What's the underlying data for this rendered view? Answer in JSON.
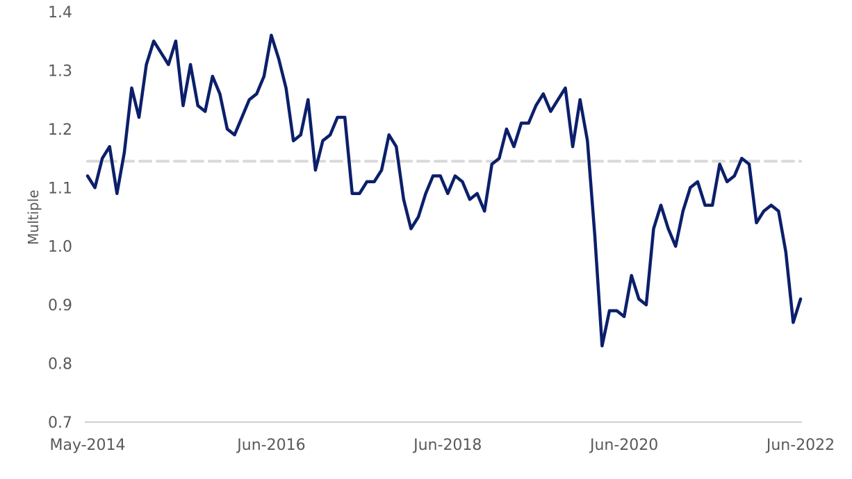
{
  "chart_data": {
    "type": "line",
    "title": "",
    "xlabel": "",
    "ylabel": "Multiple",
    "ylim": [
      0.7,
      1.4
    ],
    "yticks": [
      "0.7",
      "0.8",
      "0.9",
      "1.0",
      "1.1",
      "1.2",
      "1.3",
      "1.4"
    ],
    "xticks": [
      "May-2014",
      "Jun-2016",
      "Jun-2018",
      "Jun-2020",
      "Jun-2022"
    ],
    "grid": false,
    "colors": {
      "series": "#0b1f6b",
      "reference": "#d9d9d9",
      "axis": "#bfbfbf",
      "text": "#595959"
    },
    "reference_line": {
      "value": 1.145,
      "style": "dashed"
    },
    "series": [
      {
        "x_start": "May-2014",
        "x_end": "Jun-2022",
        "values": [
          1.12,
          1.1,
          1.15,
          1.17,
          1.09,
          1.16,
          1.27,
          1.22,
          1.31,
          1.35,
          1.33,
          1.31,
          1.35,
          1.24,
          1.31,
          1.24,
          1.23,
          1.29,
          1.26,
          1.2,
          1.19,
          1.22,
          1.25,
          1.26,
          1.29,
          1.36,
          1.32,
          1.27,
          1.18,
          1.19,
          1.25,
          1.13,
          1.18,
          1.19,
          1.22,
          1.22,
          1.09,
          1.09,
          1.11,
          1.11,
          1.13,
          1.19,
          1.17,
          1.08,
          1.03,
          1.05,
          1.09,
          1.12,
          1.12,
          1.09,
          1.12,
          1.11,
          1.08,
          1.09,
          1.06,
          1.14,
          1.15,
          1.2,
          1.17,
          1.21,
          1.21,
          1.24,
          1.26,
          1.23,
          1.25,
          1.27,
          1.17,
          1.25,
          1.18,
          1.02,
          0.83,
          0.89,
          0.89,
          0.88,
          0.95,
          0.91,
          0.9,
          1.03,
          1.07,
          1.03,
          1.0,
          1.06,
          1.1,
          1.11,
          1.07,
          1.07,
          1.14,
          1.11,
          1.12,
          1.15,
          1.14,
          1.04,
          1.06,
          1.07,
          1.06,
          0.99,
          0.87,
          0.91
        ]
      }
    ]
  }
}
